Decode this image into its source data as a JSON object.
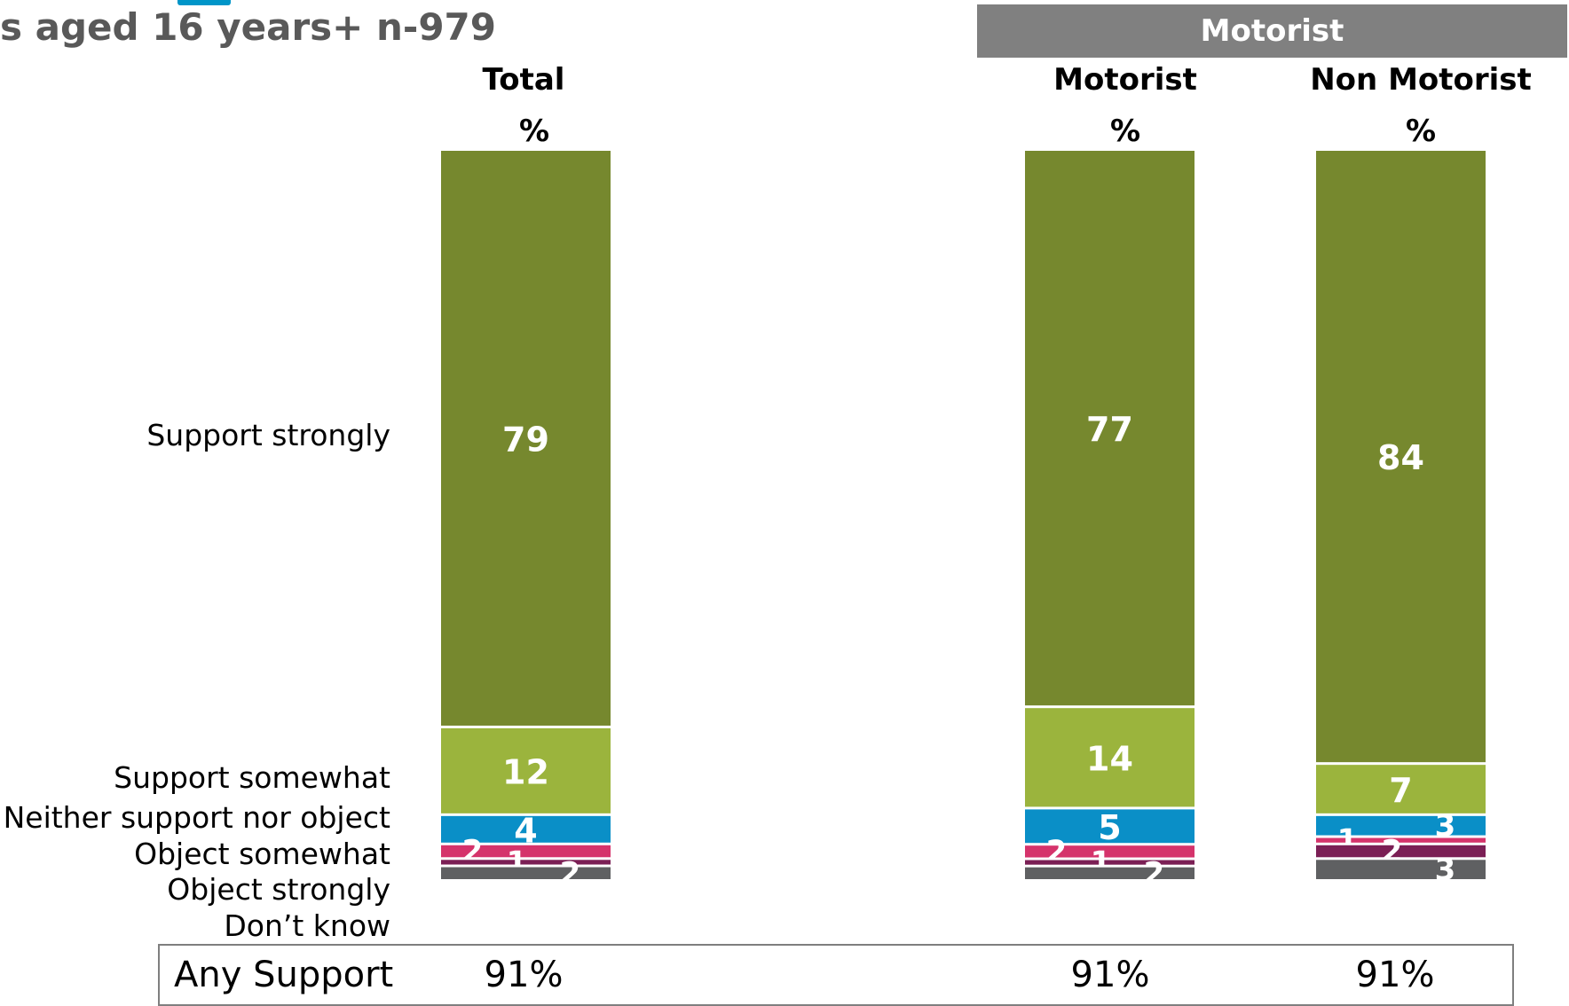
{
  "header": {
    "subtitle": "s aged 16 years+ n-979",
    "group_label": "Motorist",
    "title_accent_color": "#0095C8",
    "group_header_color": "#808080"
  },
  "columns": [
    {
      "title": "Total",
      "unit": "%",
      "summary": "91%"
    },
    {
      "title": "Motorist",
      "unit": "%",
      "summary": "91%"
    },
    {
      "title": "Non Motorist",
      "unit": "%",
      "summary": "91%"
    }
  ],
  "summary_row": {
    "label": "Any Support"
  },
  "chart_data": {
    "type": "bar",
    "stacked": true,
    "categories": [
      "Total",
      "Motorist",
      "Non Motorist"
    ],
    "unit": "%",
    "series": [
      {
        "name": "Support strongly",
        "color": "#76882E",
        "values": [
          79,
          77,
          84
        ]
      },
      {
        "name": "Support somewhat",
        "color": "#9BB43D",
        "values": [
          12,
          14,
          7
        ]
      },
      {
        "name": "Neither support nor object",
        "color": "#0A8FC7",
        "values": [
          4,
          5,
          3
        ]
      },
      {
        "name": "Object somewhat",
        "color": "#D5336B",
        "values": [
          2,
          2,
          1
        ]
      },
      {
        "name": "Object strongly",
        "color": "#7B1F55",
        "values": [
          1,
          1,
          2
        ]
      },
      {
        "name": "Don’t know",
        "color": "#5F6062",
        "values": [
          2,
          2,
          3
        ]
      }
    ],
    "legend_position": "left",
    "grid": false
  }
}
